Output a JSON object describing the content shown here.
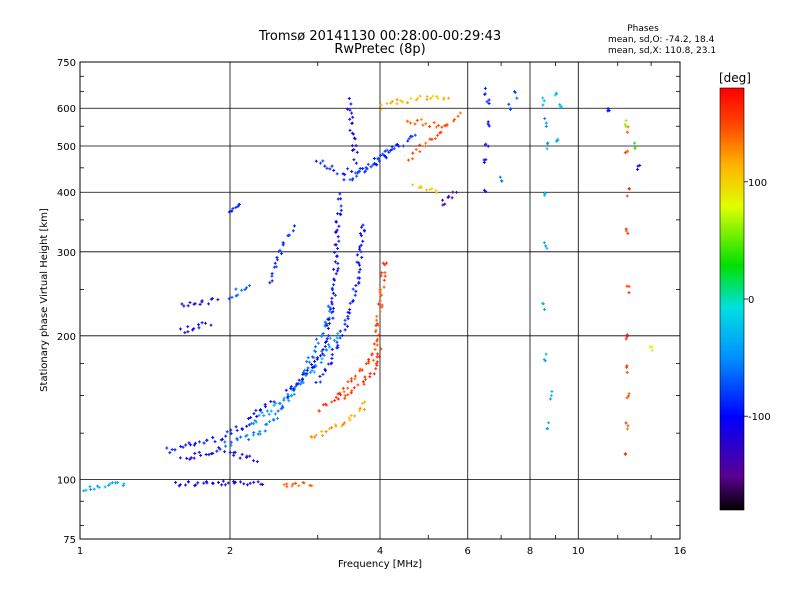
{
  "chart_data": {
    "type": "scatter",
    "title": "Tromsø 20141130 00:28:00-00:29:43",
    "subtitle": "RwPretec (8p)",
    "xlabel": "Frequency [MHz]",
    "ylabel": "Stationary phase Virtual Height [km]",
    "xscale": "log",
    "yscale": "log",
    "xlim": [
      1,
      16
    ],
    "ylim": [
      75,
      750
    ],
    "xticks": [
      1,
      2,
      4,
      6,
      8,
      10,
      16
    ],
    "yticks": [
      75,
      100,
      200,
      300,
      400,
      500,
      600,
      750
    ],
    "grid": true,
    "legend": {
      "title": "Phases",
      "line1": "mean, sd,O: -74.2, 18.4",
      "line2": "mean, sd,X: 110.8, 23.1"
    },
    "colorbar": {
      "label": "[deg]",
      "range": [
        -180,
        180
      ],
      "ticks": [
        100,
        0,
        -100
      ],
      "tick_labels": [
        "100",
        "0",
        "-100"
      ]
    },
    "series": [
      {
        "name": "trace-100km-blue",
        "phase": -110,
        "points": [
          [
            1.55,
            98,
            2.35,
            98
          ]
        ],
        "kind": "trace"
      },
      {
        "name": "trace-100km-orange",
        "phase": 140,
        "points": [
          [
            2.55,
            98,
            2.95,
            98
          ]
        ],
        "kind": "trace"
      },
      {
        "name": "trace-low-cyan",
        "phase": -40,
        "points": [
          [
            1.0,
            95,
            1.25,
            98
          ]
        ],
        "kind": "trace"
      },
      {
        "name": "trace-E-blue",
        "phase": -100,
        "points": [
          [
            1.5,
            115,
            1.9,
            122,
            2.15,
            130,
            2.3,
            140,
            2.45,
            148
          ]
        ],
        "kind": "trace"
      },
      {
        "name": "trace-E-low-blue",
        "phase": -110,
        "points": [
          [
            1.6,
            110,
            1.9,
            115,
            2.1,
            112,
            2.3,
            110
          ]
        ],
        "kind": "trace"
      },
      {
        "name": "trace-F-cyan-1",
        "phase": -60,
        "points": [
          [
            1.95,
            118,
            2.3,
            125,
            2.6,
            145,
            2.8,
            165,
            2.95,
            185,
            3.1,
            210,
            3.2,
            235
          ]
        ],
        "kind": "trace"
      },
      {
        "name": "trace-F-cyan-2",
        "phase": -50,
        "points": [
          [
            2.2,
            130,
            2.5,
            145,
            2.8,
            160,
            3.0,
            175,
            3.15,
            190,
            3.3,
            205
          ]
        ],
        "kind": "trace"
      },
      {
        "name": "trace-F-blue-X",
        "phase": -100,
        "points": [
          [
            2.6,
            150,
            2.9,
            170,
            3.1,
            190,
            3.2,
            220,
            3.25,
            260,
            3.28,
            300,
            3.3,
            350,
            3.32,
            400
          ]
        ],
        "kind": "trace"
      },
      {
        "name": "trace-F-blue-O",
        "phase": -95,
        "points": [
          [
            3.0,
            160,
            3.2,
            180,
            3.35,
            200,
            3.5,
            230,
            3.6,
            260,
            3.65,
            300,
            3.7,
            350
          ]
        ],
        "kind": "trace"
      },
      {
        "name": "trace-F-yellow",
        "phase": 120,
        "points": [
          [
            2.9,
            122,
            3.2,
            128,
            3.5,
            135,
            3.8,
            145
          ]
        ],
        "kind": "trace"
      },
      {
        "name": "trace-F-orange",
        "phase": 150,
        "points": [
          [
            3.3,
            150,
            3.6,
            165,
            3.85,
            180,
            3.95,
            200,
            4.0,
            230,
            4.05,
            260,
            4.08,
            290
          ]
        ],
        "kind": "trace"
      },
      {
        "name": "trace-F-orange-2",
        "phase": 160,
        "points": [
          [
            3.0,
            140,
            3.4,
            150,
            3.7,
            160,
            3.9,
            170,
            4.0,
            190
          ]
        ],
        "kind": "trace"
      },
      {
        "name": "trace-F-blue-top",
        "phase": -90,
        "points": [
          [
            3.0,
            470,
            3.3,
            440,
            3.6,
            445,
            3.9,
            460,
            4.2,
            490,
            4.5,
            510,
            4.8,
            530
          ]
        ],
        "kind": "trace"
      },
      {
        "name": "trace-F-blue-top-2",
        "phase": -80,
        "points": [
          [
            3.4,
            420,
            3.6,
            430,
            3.8,
            450,
            4.0,
            470,
            4.3,
            500
          ]
        ],
        "kind": "trace"
      },
      {
        "name": "trace-F2-blue-vert",
        "phase": -110,
        "points": [
          [
            3.45,
            620,
            3.5,
            560,
            3.55,
            500,
            3.6,
            460
          ]
        ],
        "kind": "trace"
      },
      {
        "name": "trace-F2-orange",
        "phase": 150,
        "points": [
          [
            4.6,
            470,
            4.9,
            500,
            5.2,
            530,
            5.5,
            560,
            5.8,
            590
          ]
        ],
        "kind": "trace"
      },
      {
        "name": "trace-F2-yellow",
        "phase": 110,
        "points": [
          [
            4.0,
            600,
            4.4,
            620,
            4.8,
            630,
            5.2,
            630,
            5.6,
            625
          ]
        ],
        "kind": "trace"
      },
      {
        "name": "trace-F2-orange-2",
        "phase": 140,
        "points": [
          [
            4.5,
            570,
            4.8,
            560,
            5.1,
            555,
            5.4,
            550
          ]
        ],
        "kind": "trace"
      },
      {
        "name": "trace-F2-yellow-mid",
        "phase": 100,
        "points": [
          [
            4.7,
            410,
            5.0,
            405,
            5.3,
            400
          ]
        ],
        "kind": "trace"
      },
      {
        "name": "trace-F2-purple",
        "phase": -140,
        "points": [
          [
            5.3,
            380,
            5.5,
            390,
            5.7,
            400
          ]
        ],
        "kind": "trace"
      },
      {
        "name": "trace-F-left-blue",
        "phase": -110,
        "points": [
          [
            1.6,
            230,
            1.75,
            235,
            1.9,
            240
          ]
        ],
        "kind": "trace"
      },
      {
        "name": "trace-F-left-blue-2",
        "phase": -110,
        "points": [
          [
            1.6,
            205,
            1.75,
            210,
            1.85,
            212
          ]
        ],
        "kind": "trace"
      },
      {
        "name": "trace-F-left-blue-3",
        "phase": -70,
        "points": [
          [
            2.0,
            240,
            2.1,
            250,
            2.2,
            255
          ]
        ],
        "kind": "trace"
      },
      {
        "name": "trace-F-blue-280",
        "phase": -85,
        "points": [
          [
            2.4,
            260,
            2.5,
            290,
            2.6,
            320,
            2.7,
            340
          ]
        ],
        "kind": "trace"
      },
      {
        "name": "trace-F-blue-370",
        "phase": -90,
        "points": [
          [
            2.0,
            365,
            2.05,
            375,
            2.1,
            385
          ]
        ],
        "kind": "trace"
      },
      {
        "name": "scatter-6.5",
        "phase": -100,
        "points": [
          [
            6.5,
            400,
            6.5,
            460,
            6.55,
            500,
            6.6,
            560,
            6.5,
            650,
            6.6,
            620
          ]
        ],
        "kind": "column"
      },
      {
        "name": "scatter-7",
        "phase": -70,
        "points": [
          [
            7.0,
            430,
            7.3,
            600,
            7.5,
            640
          ]
        ],
        "kind": "column"
      },
      {
        "name": "scatter-8.5",
        "phase": -40,
        "points": [
          [
            8.5,
            620,
            8.6,
            560,
            8.7,
            500,
            8.6,
            400,
            8.6,
            310,
            8.5,
            230,
            8.6,
            180,
            8.8,
            150,
            8.7,
            130
          ]
        ],
        "kind": "column"
      },
      {
        "name": "scatter-9",
        "phase": -20,
        "points": [
          [
            9.0,
            640,
            9.2,
            600,
            9.1,
            520
          ]
        ],
        "kind": "column"
      },
      {
        "name": "scatter-12.5",
        "phase": 150,
        "points": [
          [
            12.5,
            540,
            12.5,
            480,
            12.6,
            400,
            12.5,
            330,
            12.6,
            250,
            12.5,
            200,
            12.5,
            170,
            12.6,
            150,
            12.5,
            130,
            12.5,
            115
          ]
        ],
        "kind": "column"
      },
      {
        "name": "scatter-12.5-green",
        "phase": 50,
        "points": [
          [
            12.5,
            560,
            13.0,
            500
          ]
        ],
        "kind": "column"
      },
      {
        "name": "scatter-14",
        "phase": 90,
        "points": [
          [
            14.0,
            190
          ]
        ],
        "kind": "column"
      },
      {
        "name": "scatter-11.5",
        "phase": -110,
        "points": [
          [
            11.5,
            600,
            13.2,
            450
          ]
        ],
        "kind": "column"
      }
    ]
  }
}
